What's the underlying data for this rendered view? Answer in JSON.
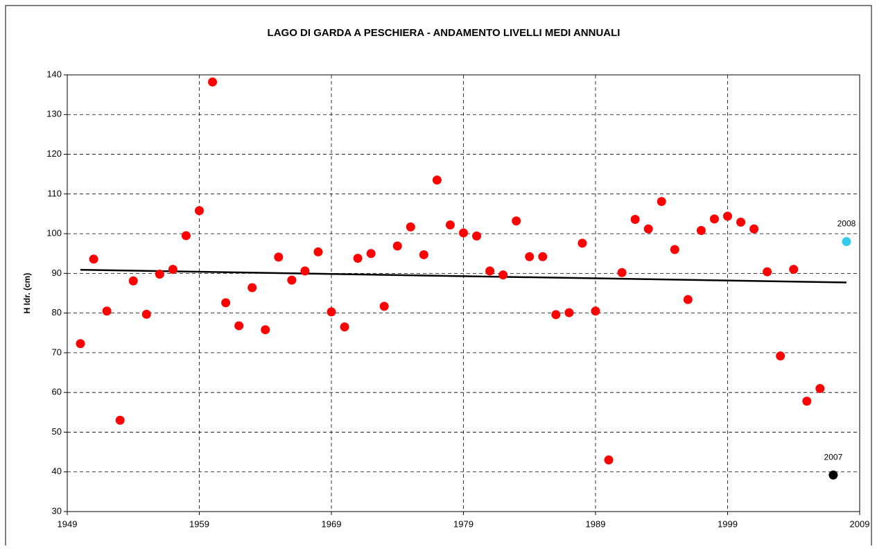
{
  "chart_data": {
    "type": "scatter",
    "title": "LAGO DI GARDA A PESCHIERA - ANDAMENTO LIVELLI MEDI ANNUALI",
    "y_label": "H Idr. (cm)",
    "xlim": [
      1949,
      2009
    ],
    "xticks": [
      1949,
      1959,
      1969,
      1979,
      1989,
      1999,
      2009
    ],
    "ylim": [
      30,
      140
    ],
    "yticks": [
      30,
      40,
      50,
      60,
      70,
      80,
      90,
      100,
      110,
      120,
      130,
      140
    ],
    "grid": true,
    "series": [
      {
        "color": "#ff0000",
        "x": [
          1950,
          1951,
          1952,
          1953,
          1954,
          1955,
          1956,
          1957,
          1958,
          1959,
          1960,
          1961,
          1962,
          1963,
          1964,
          1965,
          1966,
          1967,
          1968,
          1969,
          1970,
          1971,
          1972,
          1973,
          1974,
          1975,
          1976,
          1977,
          1978,
          1979,
          1980,
          1981,
          1982,
          1983,
          1984,
          1985,
          1986,
          1987,
          1988,
          1989,
          1990,
          1991,
          1992,
          1993,
          1994,
          1995,
          1996,
          1997,
          1998,
          1999,
          2000,
          2001,
          2002,
          2003,
          2004,
          2005,
          2006
        ],
        "values": [
          72.3,
          93.6,
          80.5,
          53,
          88.1,
          79.7,
          89.8,
          91,
          99.5,
          105.8,
          138.2,
          82.6,
          76.8,
          86.4,
          75.8,
          94.1,
          88.3,
          90.6,
          95.4,
          80.3,
          76.5,
          93.8,
          95,
          81.7,
          96.9,
          101.7,
          94.7,
          113.5,
          102.2,
          100.2,
          99.4,
          90.6,
          89.6,
          103.2,
          94.2,
          94.2,
          79.6,
          80.1,
          97.6,
          80.5,
          43,
          90.2,
          103.6,
          101.2,
          108.1,
          96,
          83.4,
          100.8,
          103.7,
          104.4,
          102.9,
          101.2,
          90.4,
          69.2,
          91,
          57.8,
          61
        ]
      },
      {
        "color": "#000000",
        "x": [
          2007
        ],
        "values": [
          39.2
        ],
        "annotate": true
      },
      {
        "color": "#33ccee",
        "x": [
          2008
        ],
        "values": [
          98
        ],
        "annotate": true
      }
    ],
    "trend_line": {
      "color": "#000000",
      "x": [
        1950,
        2008
      ],
      "values": [
        90.9,
        87.7
      ]
    }
  }
}
